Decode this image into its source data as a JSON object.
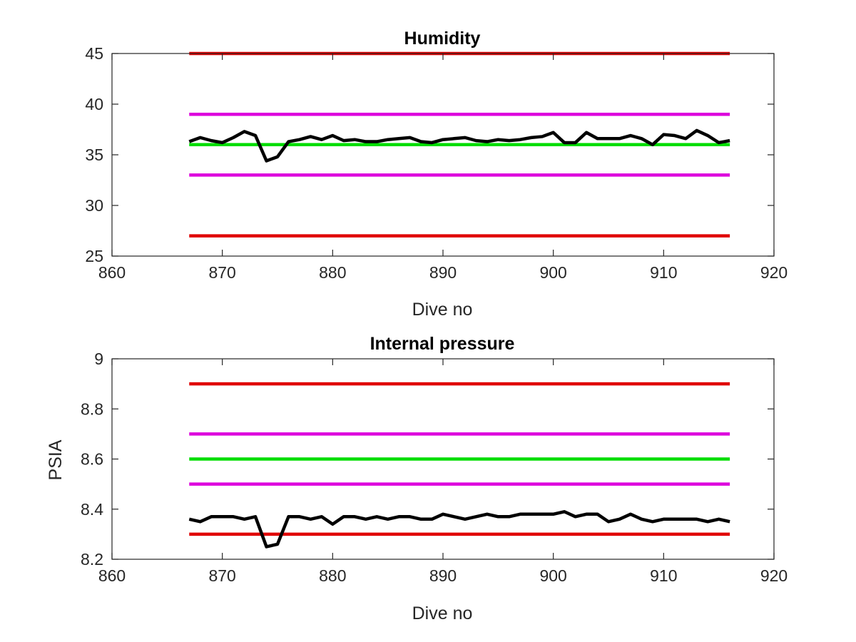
{
  "chart_data": [
    {
      "type": "line",
      "title": "Humidity",
      "xlabel": "Dive no",
      "ylabel": "",
      "xlim": [
        860,
        920
      ],
      "ylim": [
        25,
        45
      ],
      "xticks": [
        860,
        870,
        880,
        890,
        900,
        910,
        920
      ],
      "yticks": [
        25,
        30,
        35,
        40,
        45
      ],
      "grid": false,
      "x": [
        867,
        868,
        869,
        870,
        871,
        872,
        873,
        874,
        875,
        876,
        877,
        878,
        879,
        880,
        881,
        882,
        883,
        884,
        885,
        886,
        887,
        888,
        889,
        890,
        891,
        892,
        893,
        894,
        895,
        896,
        897,
        898,
        899,
        900,
        901,
        902,
        903,
        904,
        905,
        906,
        907,
        908,
        909,
        910,
        911,
        912,
        913,
        914,
        915,
        916
      ],
      "series": [
        {
          "color": "#000000",
          "values": [
            36.3,
            36.7,
            36.4,
            36.2,
            36.7,
            37.3,
            36.9,
            34.4,
            34.8,
            36.3,
            36.5,
            36.8,
            36.5,
            36.9,
            36.4,
            36.5,
            36.3,
            36.3,
            36.5,
            36.6,
            36.7,
            36.3,
            36.2,
            36.5,
            36.6,
            36.7,
            36.4,
            36.3,
            36.5,
            36.4,
            36.5,
            36.7,
            36.8,
            37.2,
            36.2,
            36.2,
            37.2,
            36.6,
            36.6,
            36.6,
            36.9,
            36.6,
            36.0,
            37.0,
            36.9,
            36.6,
            37.4,
            36.9,
            36.2,
            36.4
          ]
        },
        {
          "color": "#e00000",
          "values": [
            45,
            45
          ],
          "x": [
            867,
            916
          ]
        },
        {
          "color": "#dd00dd",
          "values": [
            39,
            39
          ],
          "x": [
            867,
            916
          ]
        },
        {
          "color": "#00dd00",
          "values": [
            36,
            36
          ],
          "x": [
            867,
            916
          ]
        },
        {
          "color": "#dd00dd",
          "values": [
            33,
            33
          ],
          "x": [
            867,
            916
          ]
        },
        {
          "color": "#e00000",
          "values": [
            27,
            27
          ],
          "x": [
            867,
            916
          ]
        }
      ]
    },
    {
      "type": "line",
      "title": "Internal pressure",
      "xlabel": "Dive no",
      "ylabel": "PSIA",
      "xlim": [
        860,
        920
      ],
      "ylim": [
        8.2,
        9
      ],
      "xticks": [
        860,
        870,
        880,
        890,
        900,
        910,
        920
      ],
      "yticks": [
        8.2,
        8.4,
        8.6,
        8.8,
        9
      ],
      "ytick_labels": [
        "8.2",
        "8.4",
        "8.6",
        "8.8",
        "9"
      ],
      "grid": false,
      "x": [
        867,
        868,
        869,
        870,
        871,
        872,
        873,
        874,
        875,
        876,
        877,
        878,
        879,
        880,
        881,
        882,
        883,
        884,
        885,
        886,
        887,
        888,
        889,
        890,
        891,
        892,
        893,
        894,
        895,
        896,
        897,
        898,
        899,
        900,
        901,
        902,
        903,
        904,
        905,
        906,
        907,
        908,
        909,
        910,
        911,
        912,
        913,
        914,
        915,
        916
      ],
      "series": [
        {
          "color": "#000000",
          "values": [
            8.36,
            8.35,
            8.37,
            8.37,
            8.37,
            8.36,
            8.37,
            8.25,
            8.26,
            8.37,
            8.37,
            8.36,
            8.37,
            8.34,
            8.37,
            8.37,
            8.36,
            8.37,
            8.36,
            8.37,
            8.37,
            8.36,
            8.36,
            8.38,
            8.37,
            8.36,
            8.37,
            8.38,
            8.37,
            8.37,
            8.38,
            8.38,
            8.38,
            8.38,
            8.39,
            8.37,
            8.38,
            8.38,
            8.35,
            8.36,
            8.38,
            8.36,
            8.35,
            8.36,
            8.36,
            8.36,
            8.36,
            8.35,
            8.36,
            8.35
          ]
        },
        {
          "color": "#e00000",
          "values": [
            8.9,
            8.9
          ],
          "x": [
            867,
            916
          ]
        },
        {
          "color": "#dd00dd",
          "values": [
            8.7,
            8.7
          ],
          "x": [
            867,
            916
          ]
        },
        {
          "color": "#00dd00",
          "values": [
            8.6,
            8.6
          ],
          "x": [
            867,
            916
          ]
        },
        {
          "color": "#dd00dd",
          "values": [
            8.5,
            8.5
          ],
          "x": [
            867,
            916
          ]
        },
        {
          "color": "#e00000",
          "values": [
            8.3,
            8.3
          ],
          "x": [
            867,
            916
          ]
        }
      ]
    }
  ]
}
